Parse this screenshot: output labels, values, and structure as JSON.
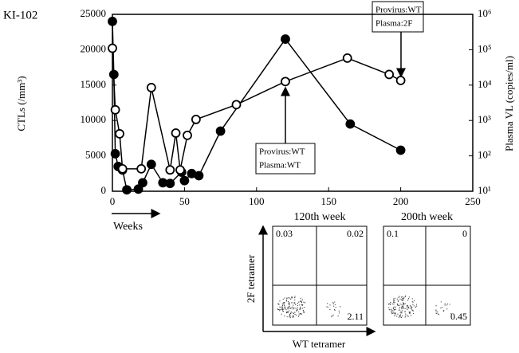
{
  "chart_data": {
    "type": "line",
    "label": "KI-102",
    "y_label": "CTLs (/mm³)",
    "y2_label": "Plasma VL (copies/ml)",
    "x_label": "Weeks",
    "xlim": [
      0,
      250
    ],
    "xticks": [
      0,
      50,
      100,
      150,
      200,
      250
    ],
    "ylim": [
      0,
      25000
    ],
    "yticks": [
      0,
      5000,
      10000,
      15000,
      20000,
      25000
    ],
    "y2lim": [
      10,
      1000000
    ],
    "y2log": true,
    "y2ticks": [
      {
        "value": 10,
        "label": "10¹"
      },
      {
        "value": 100,
        "label": "10²"
      },
      {
        "value": 1000,
        "label": "10³"
      },
      {
        "value": 10000,
        "label": "10⁴"
      },
      {
        "value": 100000,
        "label": "10⁵"
      },
      {
        "value": 1000000,
        "label": "10⁶"
      }
    ],
    "series": [
      {
        "marker": "filled",
        "color": "#000000",
        "x": [
          0,
          1,
          2,
          4,
          7,
          10,
          18,
          21,
          27,
          35,
          40,
          48,
          50,
          55,
          60,
          75,
          120,
          165,
          200
        ],
        "values": [
          24000,
          16500,
          5300,
          3500,
          3000,
          200,
          300,
          1200,
          3800,
          1200,
          1100,
          2700,
          1500,
          2500,
          2200,
          8500,
          21500,
          9500,
          5800
        ]
      },
      {
        "marker": "open",
        "color": "#000000",
        "axis": "y2",
        "x": [
          0,
          2,
          5,
          7,
          20,
          27,
          40,
          44,
          47,
          52,
          58,
          86,
          120,
          163,
          192,
          200
        ],
        "values": [
          110000,
          2000,
          420,
          43,
          43,
          8500,
          40,
          440,
          40,
          380,
          1070,
          2800,
          12600,
          58000,
          20000,
          13500
        ]
      }
    ],
    "annotations": [
      {
        "lines": [
          "Provirus:WT",
          "Plasma:2F"
        ]
      },
      {
        "lines": [
          "Provirus:WT",
          "Plasma:WT"
        ]
      }
    ]
  },
  "flow": {
    "y_label": "2F tetramer",
    "x_label": "WT tetramer",
    "panels": [
      {
        "title": "120th week",
        "quadrants": [
          0.03,
          0.02,
          2.11
        ]
      },
      {
        "title": "200th week",
        "quadrants": [
          0.1,
          0,
          0.45
        ]
      }
    ]
  }
}
